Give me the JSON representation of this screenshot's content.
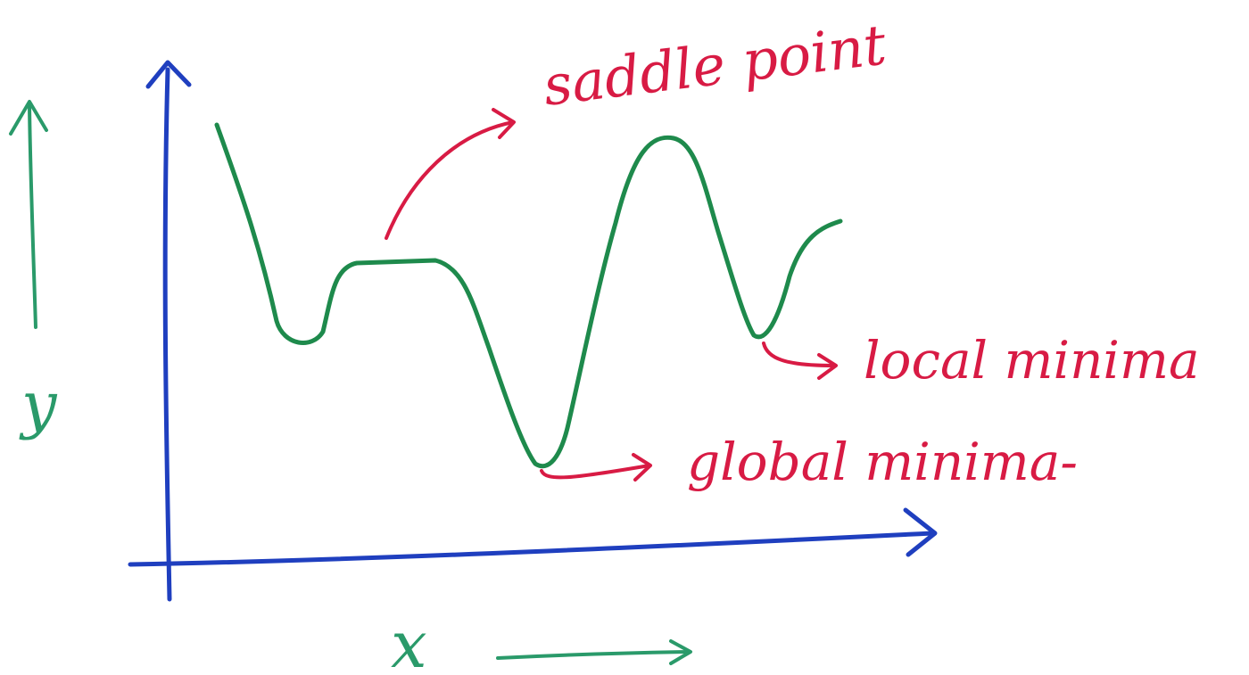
{
  "colors": {
    "axis": "#1f3fbf",
    "curve": "#1e8a4c",
    "annotation": "#d81b44",
    "background": "#ffffff"
  },
  "labels": {
    "y_axis": "y",
    "x_axis": "x",
    "saddle_point": "saddle point",
    "local_minima": "local minima",
    "global_minima": "global minima-"
  }
}
